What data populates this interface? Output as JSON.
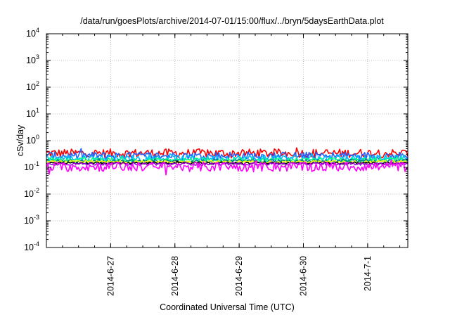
{
  "chart_data": {
    "type": "line",
    "title": "/data/run/goesPlots/archive/2014-07-01/15:00/flux/../bryn/5daysEarthData.plot",
    "xlabel": "Coordinated Universal Time (UTC)",
    "ylabel": "cSv/day",
    "yscale": "log",
    "ylim": [
      0.0001,
      10000
    ],
    "y_ticks": [
      {
        "value": 0.0001,
        "base": "10",
        "exp": "-4"
      },
      {
        "value": 0.001,
        "base": "10",
        "exp": "-3"
      },
      {
        "value": 0.01,
        "base": "10",
        "exp": "-2"
      },
      {
        "value": 0.1,
        "base": "10",
        "exp": "-1"
      },
      {
        "value": 1,
        "base": "10",
        "exp": "0"
      },
      {
        "value": 10,
        "base": "10",
        "exp": "1"
      },
      {
        "value": 100,
        "base": "10",
        "exp": "2"
      },
      {
        "value": 1000,
        "base": "10",
        "exp": "3"
      },
      {
        "value": 10000,
        "base": "10",
        "exp": "4"
      }
    ],
    "xlim": [
      "2014-06-26T00:00",
      "2014-07-01T15:00"
    ],
    "x_ticks": [
      "2014-6-27",
      "2014-6-28",
      "2014-6-29",
      "2014-6-30",
      "2014-7-1"
    ],
    "grid": true,
    "series": [
      {
        "color": "#ff0000",
        "level": 0.34,
        "spread": 0.16
      },
      {
        "color": "#1f5fff",
        "level": 0.27,
        "spread": 0.15
      },
      {
        "color": "#00bfff",
        "level": 0.22,
        "spread": 0.12
      },
      {
        "color": "#00ff7f",
        "level": 0.19,
        "spread": 0.08
      },
      {
        "color": "#008080",
        "level": 0.17,
        "spread": 0.06
      },
      {
        "color": "#ffff00",
        "level": 0.16,
        "spread": 0.05
      },
      {
        "color": "#000000",
        "level": 0.145,
        "spread": 0.04
      },
      {
        "color": "#9400d3",
        "level": 0.135,
        "spread": 0.05
      },
      {
        "color": "#ff00ff",
        "level": 0.105,
        "spread": 0.18
      }
    ]
  }
}
